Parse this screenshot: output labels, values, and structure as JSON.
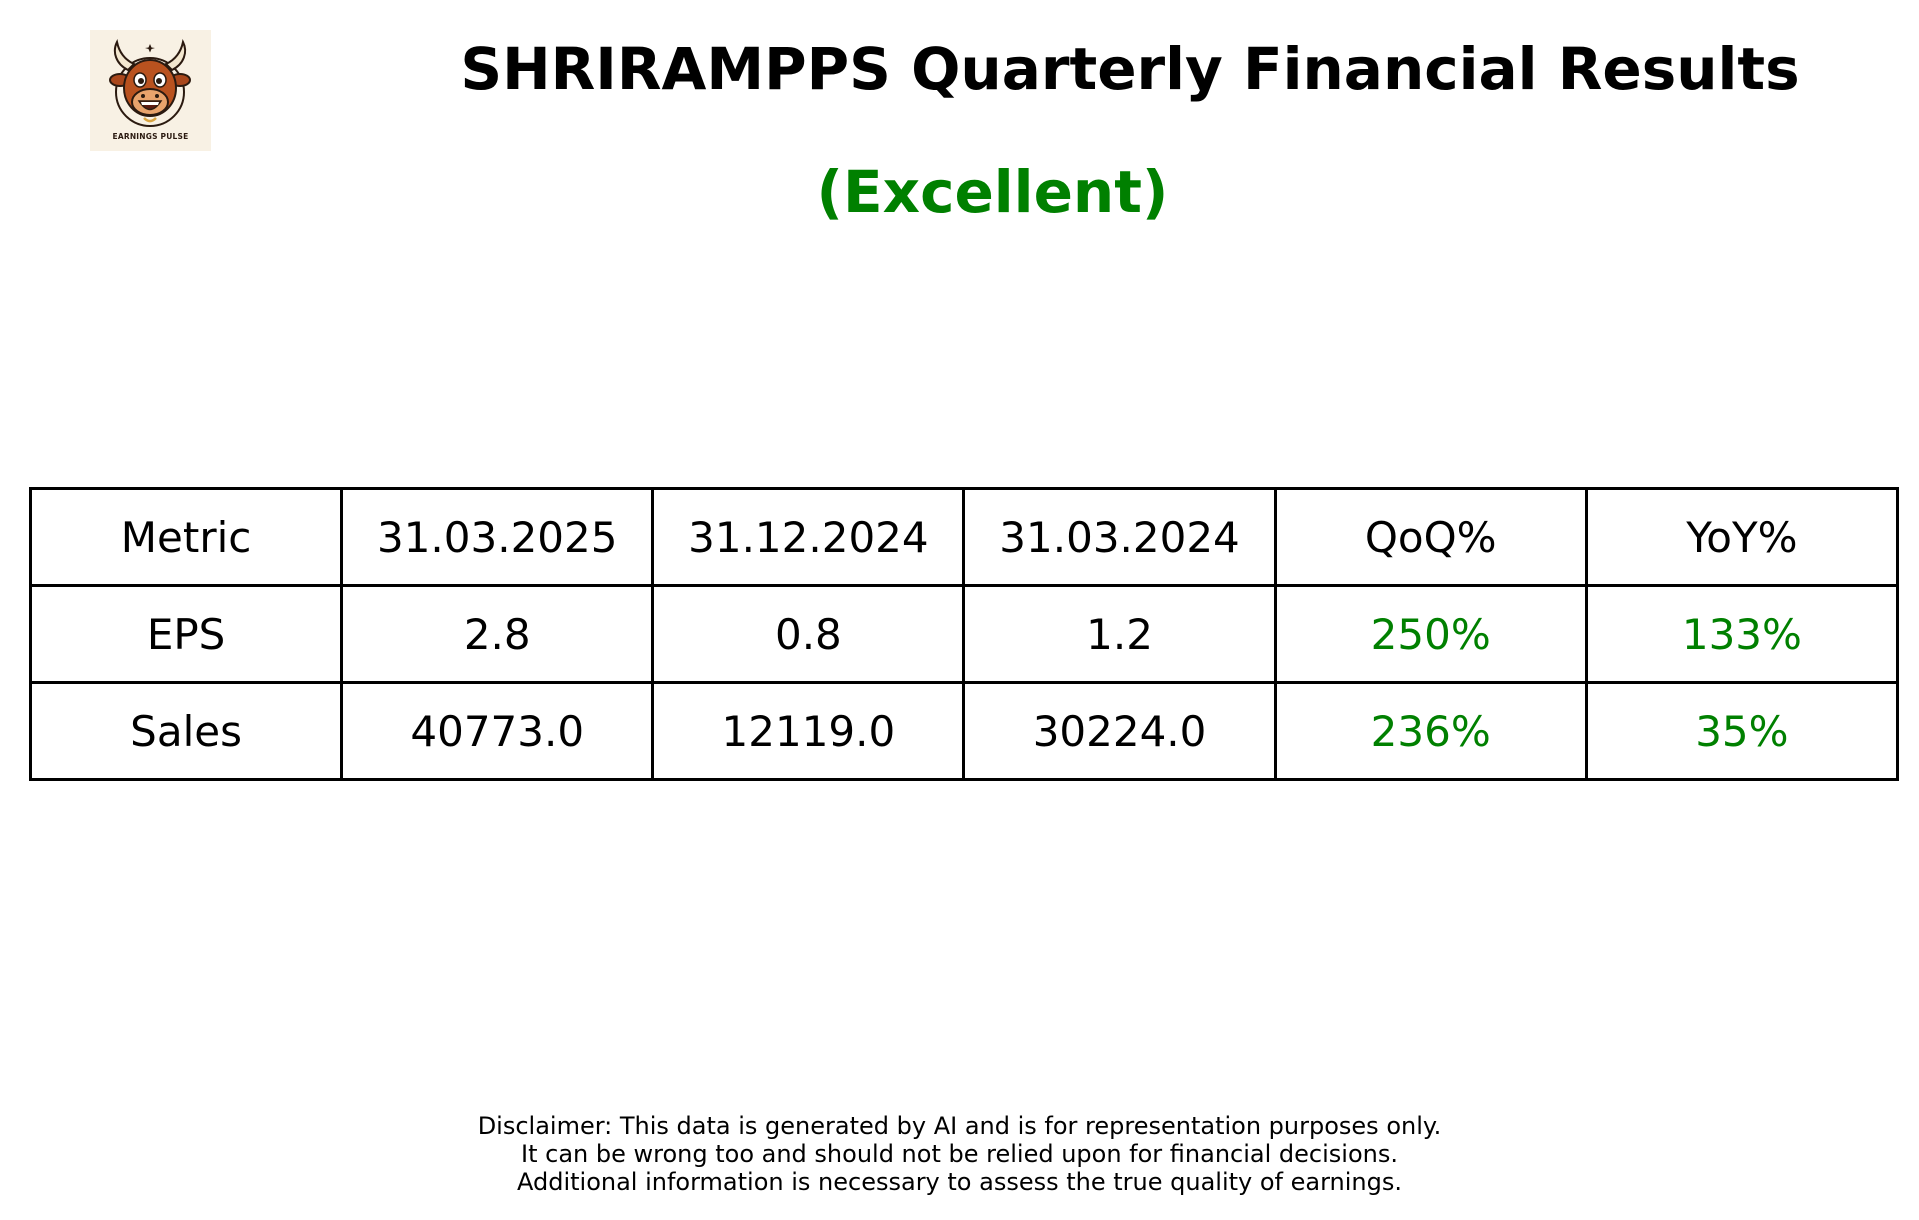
{
  "logo": {
    "icon": "bull-mascot-icon",
    "text": "EARNINGS PULSE"
  },
  "title": "SHRIRAMPPS Quarterly Financial Results",
  "rating": {
    "label": "(Excellent)",
    "color": "#008000"
  },
  "table": {
    "headers": [
      "Metric",
      "31.03.2025",
      "31.12.2024",
      "31.03.2024",
      "QoQ%",
      "YoY%"
    ],
    "rows": [
      {
        "metric": "EPS",
        "q1": "2.8",
        "q2": "0.8",
        "q3": "1.2",
        "qoq": "250%",
        "yoy": "133%"
      },
      {
        "metric": "Sales",
        "q1": "40773.0",
        "q2": "12119.0",
        "q3": "30224.0",
        "qoq": "236%",
        "yoy": "35%"
      }
    ],
    "positive_color": "#008000"
  },
  "disclaimer": {
    "line1": "Disclaimer: This data is generated by AI and is for representation purposes only.",
    "line2": "It can be wrong too and should not be relied upon for financial decisions.",
    "line3": "Additional information is necessary to assess the true quality of earnings."
  }
}
